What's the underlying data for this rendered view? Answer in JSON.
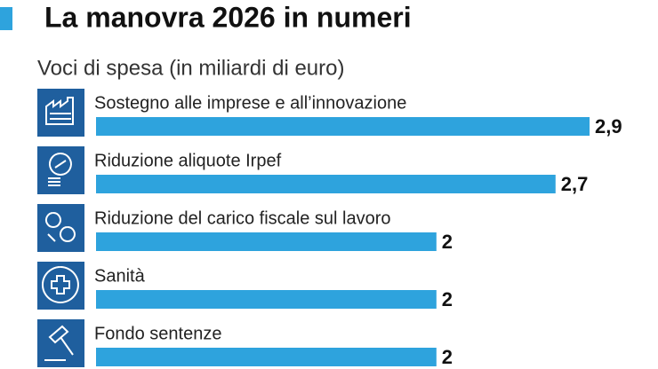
{
  "chart_data": {
    "type": "bar",
    "orientation": "horizontal",
    "title": "La manovra 2026 in numeri",
    "subtitle": "Voci di spesa (in miliardi di euro)",
    "categories": [
      "Sostegno alle imprese e all’innovazione",
      "Riduzione aliquote Irpef",
      "Riduzione del carico fiscale sul lavoro",
      "Sanità",
      "Fondo sentenze"
    ],
    "values": [
      2.9,
      2.7,
      2,
      2,
      2
    ],
    "value_labels": [
      "2,9",
      "2,7",
      "2",
      "2",
      "2"
    ],
    "color": "#2ea3dd"
  }
}
